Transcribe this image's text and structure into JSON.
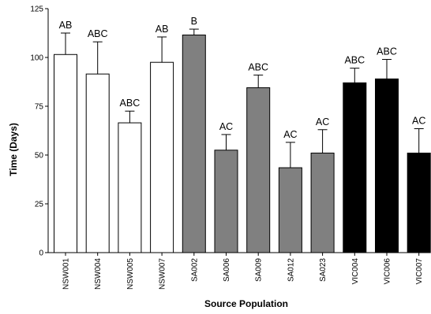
{
  "chart_data": {
    "type": "bar",
    "xlabel": "Source Population",
    "ylabel": "Time (Days)",
    "ylim": [
      0,
      125
    ],
    "yticks": [
      0,
      25,
      50,
      75,
      100,
      125
    ],
    "categories": [
      "NSW001",
      "NSW004",
      "NSW005",
      "NSW007",
      "SA002",
      "SA006",
      "SA009",
      "SA012",
      "SA023",
      "VIC004",
      "VIC006",
      "VIC007"
    ],
    "values": [
      101.5,
      91.5,
      66.5,
      97.5,
      111.5,
      52.5,
      84.5,
      43.5,
      51,
      87,
      89,
      51
    ],
    "errors": [
      11,
      16.5,
      6,
      13,
      3,
      8,
      6.5,
      13,
      12,
      7.5,
      10,
      12.5
    ],
    "significance": [
      "AB",
      "ABC",
      "ABC",
      "AB",
      "B",
      "AC",
      "ABC",
      "AC",
      "AC",
      "ABC",
      "ABC",
      "AC"
    ],
    "fill_colors": [
      "#ffffff",
      "#ffffff",
      "#ffffff",
      "#ffffff",
      "#808080",
      "#808080",
      "#808080",
      "#808080",
      "#808080",
      "#000000",
      "#000000",
      "#000000"
    ]
  }
}
